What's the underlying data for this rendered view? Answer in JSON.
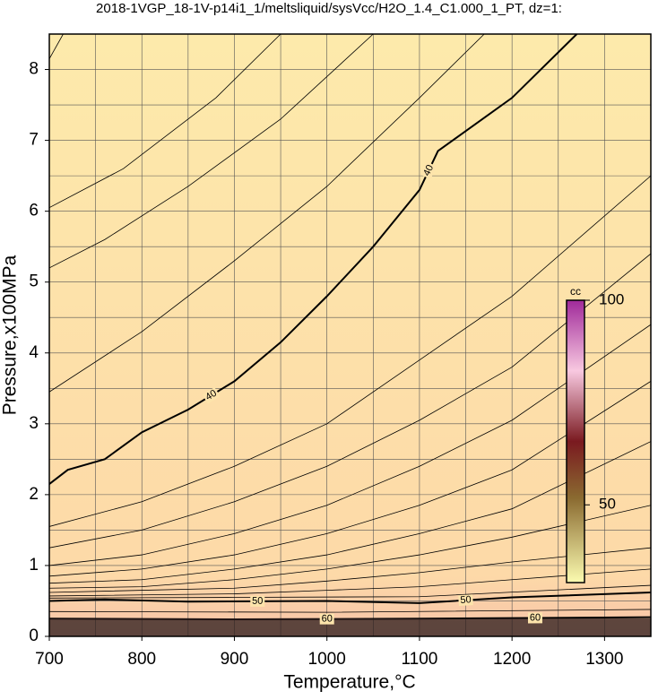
{
  "chart_data": {
    "type": "contour",
    "title": "2018-1VGP_18-1V-p14i1_1/meltsliquid/sysVcc/H2O_1.4_C1.000_1_PT, dz=1:",
    "xlabel": "Temperature,°C",
    "ylabel": "Pressure,x100MPa",
    "xlim": [
      700,
      1350
    ],
    "ylim": [
      0,
      8.5
    ],
    "xticks": [
      700,
      800,
      900,
      1000,
      1100,
      1200,
      1300
    ],
    "yticks": [
      0,
      1,
      2,
      3,
      4,
      5,
      6,
      7,
      8
    ],
    "xgrid": [
      750,
      800,
      850,
      900,
      950,
      1000,
      1050,
      1100,
      1150,
      1200,
      1250,
      1300
    ],
    "ygrid": [
      0.5,
      1,
      1.5,
      2,
      2.5,
      3,
      3.5,
      4,
      4.5,
      5,
      5.5,
      6,
      6.5,
      7,
      7.5,
      8
    ],
    "colorbar": {
      "label": "cc",
      "lim": [
        31,
        100
      ],
      "ticks": [
        50,
        100
      ]
    },
    "contours": [
      {
        "level": 36,
        "labeled": false,
        "x": [
          700,
          715
        ],
        "y": [
          8.15,
          8.5
        ]
      },
      {
        "level": 37,
        "labeled": false,
        "x": [
          700,
          780,
          880,
          950
        ],
        "y": [
          6.05,
          6.6,
          7.6,
          8.5
        ]
      },
      {
        "level": 38,
        "labeled": false,
        "x": [
          700,
          760,
          850,
          950,
          1050
        ],
        "y": [
          5.2,
          5.6,
          6.35,
          7.3,
          8.5
        ]
      },
      {
        "level": 39,
        "labeled": false,
        "x": [
          700,
          800,
          900,
          1000,
          1100,
          1170
        ],
        "y": [
          3.45,
          4.3,
          5.3,
          6.35,
          7.6,
          8.5
        ]
      },
      {
        "level": 40,
        "labeled": true,
        "x": [
          700,
          720,
          760,
          800,
          850,
          900,
          950,
          1000,
          1050,
          1100,
          1120,
          1200,
          1270
        ],
        "y": [
          2.15,
          2.35,
          2.5,
          2.88,
          3.2,
          3.6,
          4.15,
          4.8,
          5.5,
          6.3,
          6.85,
          7.6,
          8.5
        ]
      },
      {
        "level": 41,
        "labeled": false,
        "x": [
          700,
          800,
          900,
          1000,
          1100,
          1200,
          1350
        ],
        "y": [
          1.55,
          1.9,
          2.4,
          3.0,
          3.9,
          4.8,
          6.5
        ]
      },
      {
        "level": 42,
        "labeled": false,
        "x": [
          700,
          800,
          900,
          1000,
          1100,
          1200,
          1350
        ],
        "y": [
          1.25,
          1.5,
          1.9,
          2.4,
          3.05,
          3.8,
          5.4
        ]
      },
      {
        "level": 43,
        "labeled": false,
        "x": [
          700,
          800,
          900,
          1000,
          1100,
          1200,
          1350
        ],
        "y": [
          1.0,
          1.15,
          1.45,
          1.85,
          2.4,
          3.05,
          4.4
        ]
      },
      {
        "level": 44,
        "labeled": false,
        "x": [
          700,
          800,
          900,
          1000,
          1100,
          1200,
          1350
        ],
        "y": [
          0.85,
          0.95,
          1.15,
          1.45,
          1.85,
          2.35,
          3.6
        ]
      },
      {
        "level": 45,
        "labeled": false,
        "x": [
          700,
          800,
          900,
          1000,
          1100,
          1200,
          1350
        ],
        "y": [
          0.75,
          0.8,
          0.95,
          1.15,
          1.45,
          1.8,
          2.75
        ]
      },
      {
        "level": 46,
        "labeled": false,
        "x": [
          700,
          800,
          900,
          1000,
          1100,
          1200,
          1350
        ],
        "y": [
          0.68,
          0.7,
          0.8,
          0.95,
          1.15,
          1.4,
          1.85
        ]
      },
      {
        "level": 47,
        "labeled": false,
        "x": [
          700,
          900,
          1000,
          1100,
          1200,
          1350
        ],
        "y": [
          0.62,
          0.68,
          0.78,
          0.9,
          1.05,
          1.25
        ]
      },
      {
        "level": 48,
        "labeled": false,
        "x": [
          700,
          900,
          1000,
          1100,
          1200,
          1350
        ],
        "y": [
          0.57,
          0.6,
          0.65,
          0.7,
          0.8,
          0.95
        ]
      },
      {
        "level": 49,
        "labeled": false,
        "x": [
          700,
          900,
          1100,
          1350
        ],
        "y": [
          0.54,
          0.55,
          0.56,
          0.72
        ]
      },
      {
        "level": 50,
        "labeled": true,
        "x": [
          700,
          760,
          850,
          1000,
          1100,
          1200,
          1350
        ],
        "y": [
          0.5,
          0.52,
          0.49,
          0.5,
          0.47,
          0.55,
          0.62
        ]
      },
      {
        "level": 55,
        "labeled": false,
        "x": [
          700,
          1000,
          1350
        ],
        "y": [
          0.35,
          0.34,
          0.38
        ]
      },
      {
        "level": 60,
        "labeled": true,
        "x": [
          700,
          900,
          1100,
          1350
        ],
        "y": [
          0.25,
          0.24,
          0.25,
          0.27
        ]
      }
    ]
  }
}
